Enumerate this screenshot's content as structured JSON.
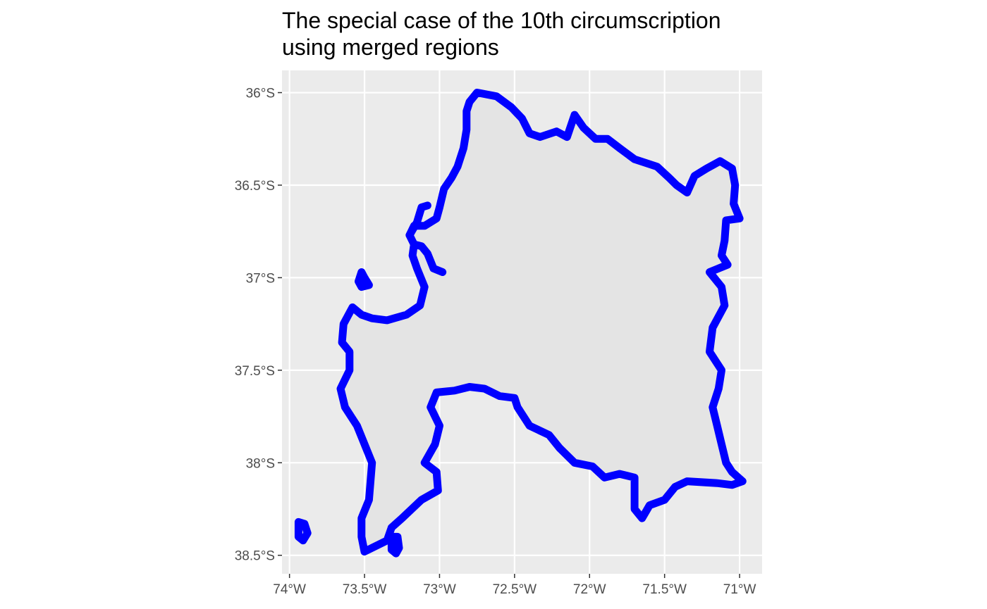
{
  "title": {
    "line1": "The special case of the 10th circumscription",
    "line2": "using merged regions"
  },
  "colors": {
    "panel_background": "#ebebeb",
    "grid": "#ffffff",
    "region_fill": "#e4e4e4",
    "border": "#0000ff",
    "tick_text": "#4d4d4d",
    "tick_mark": "#333333"
  },
  "chart_data": {
    "type": "map",
    "projection": "longitude/latitude",
    "xlim": [
      -74.05,
      -70.85
    ],
    "ylim": [
      -38.6,
      -35.88
    ],
    "x_ticks": [
      {
        "value": -74.0,
        "label": "74°W"
      },
      {
        "value": -73.5,
        "label": "73.5°W"
      },
      {
        "value": -73.0,
        "label": "73°W"
      },
      {
        "value": -72.5,
        "label": "72.5°W"
      },
      {
        "value": -72.0,
        "label": "72°W"
      },
      {
        "value": -71.5,
        "label": "71.5°W"
      },
      {
        "value": -71.0,
        "label": "71°W"
      }
    ],
    "y_ticks": [
      {
        "value": -36.0,
        "label": "36°S"
      },
      {
        "value": -36.5,
        "label": "36.5°S"
      },
      {
        "value": -37.0,
        "label": "37°S"
      },
      {
        "value": -37.5,
        "label": "37.5°S"
      },
      {
        "value": -38.0,
        "label": "38°S"
      },
      {
        "value": -38.5,
        "label": "38.5°S"
      }
    ],
    "regions": [
      {
        "id": "mainland",
        "closed": true,
        "coords": [
          [
            -72.75,
            -36.0
          ],
          [
            -72.62,
            -36.02
          ],
          [
            -72.52,
            -36.08
          ],
          [
            -72.45,
            -36.14
          ],
          [
            -72.4,
            -36.22
          ],
          [
            -72.33,
            -36.24
          ],
          [
            -72.22,
            -36.21
          ],
          [
            -72.15,
            -36.24
          ],
          [
            -72.1,
            -36.12
          ],
          [
            -72.04,
            -36.19
          ],
          [
            -71.96,
            -36.25
          ],
          [
            -71.88,
            -36.25
          ],
          [
            -71.8,
            -36.3
          ],
          [
            -71.7,
            -36.36
          ],
          [
            -71.55,
            -36.4
          ],
          [
            -71.47,
            -36.46
          ],
          [
            -71.42,
            -36.5
          ],
          [
            -71.35,
            -36.54
          ],
          [
            -71.3,
            -36.45
          ],
          [
            -71.22,
            -36.41
          ],
          [
            -71.13,
            -36.37
          ],
          [
            -71.05,
            -36.41
          ],
          [
            -71.03,
            -36.5
          ],
          [
            -71.04,
            -36.6
          ],
          [
            -71.0,
            -36.68
          ],
          [
            -71.09,
            -36.69
          ],
          [
            -71.1,
            -36.8
          ],
          [
            -71.12,
            -36.88
          ],
          [
            -71.08,
            -36.93
          ],
          [
            -71.2,
            -36.97
          ],
          [
            -71.12,
            -37.05
          ],
          [
            -71.1,
            -37.15
          ],
          [
            -71.18,
            -37.27
          ],
          [
            -71.2,
            -37.4
          ],
          [
            -71.12,
            -37.5
          ],
          [
            -71.14,
            -37.6
          ],
          [
            -71.18,
            -37.7
          ],
          [
            -71.15,
            -37.8
          ],
          [
            -71.12,
            -37.9
          ],
          [
            -71.09,
            -38.0
          ],
          [
            -71.05,
            -38.05
          ],
          [
            -70.98,
            -38.1
          ],
          [
            -71.05,
            -38.12
          ],
          [
            -71.15,
            -38.11
          ],
          [
            -71.35,
            -38.1
          ],
          [
            -71.43,
            -38.13
          ],
          [
            -71.5,
            -38.2
          ],
          [
            -71.6,
            -38.23
          ],
          [
            -71.65,
            -38.3
          ],
          [
            -71.7,
            -38.25
          ],
          [
            -71.7,
            -38.08
          ],
          [
            -71.8,
            -38.06
          ],
          [
            -71.9,
            -38.08
          ],
          [
            -71.98,
            -38.02
          ],
          [
            -72.1,
            -38.0
          ],
          [
            -72.2,
            -37.92
          ],
          [
            -72.27,
            -37.85
          ],
          [
            -72.4,
            -37.8
          ],
          [
            -72.48,
            -37.7
          ],
          [
            -72.5,
            -37.65
          ],
          [
            -72.6,
            -37.64
          ],
          [
            -72.7,
            -37.6
          ],
          [
            -72.8,
            -37.59
          ],
          [
            -72.9,
            -37.61
          ],
          [
            -73.02,
            -37.62
          ],
          [
            -73.06,
            -37.7
          ],
          [
            -73.0,
            -37.8
          ],
          [
            -73.03,
            -37.9
          ],
          [
            -73.1,
            -38.0
          ],
          [
            -73.02,
            -38.05
          ],
          [
            -73.01,
            -38.15
          ],
          [
            -73.12,
            -38.2
          ],
          [
            -73.25,
            -38.3
          ],
          [
            -73.32,
            -38.35
          ],
          [
            -73.35,
            -38.42
          ],
          [
            -73.45,
            -38.46
          ],
          [
            -73.5,
            -38.48
          ],
          [
            -73.52,
            -38.4
          ],
          [
            -73.52,
            -38.3
          ],
          [
            -73.47,
            -38.2
          ],
          [
            -73.45,
            -38.0
          ],
          [
            -73.55,
            -37.8
          ],
          [
            -73.63,
            -37.7
          ],
          [
            -73.66,
            -37.6
          ],
          [
            -73.6,
            -37.5
          ],
          [
            -73.6,
            -37.4
          ],
          [
            -73.65,
            -37.35
          ],
          [
            -73.64,
            -37.25
          ],
          [
            -73.58,
            -37.16
          ],
          [
            -73.52,
            -37.2
          ],
          [
            -73.45,
            -37.22
          ],
          [
            -73.35,
            -37.23
          ],
          [
            -73.22,
            -37.2
          ],
          [
            -73.13,
            -37.15
          ],
          [
            -73.1,
            -37.05
          ],
          [
            -73.15,
            -36.95
          ],
          [
            -73.18,
            -36.88
          ],
          [
            -73.17,
            -36.82
          ],
          [
            -73.2,
            -36.77
          ],
          [
            -73.17,
            -36.72
          ],
          [
            -73.1,
            -36.72
          ],
          [
            -73.02,
            -36.68
          ],
          [
            -73.0,
            -36.62
          ],
          [
            -72.97,
            -36.52
          ],
          [
            -72.92,
            -36.46
          ],
          [
            -72.88,
            -36.4
          ],
          [
            -72.84,
            -36.3
          ],
          [
            -72.82,
            -36.2
          ],
          [
            -72.82,
            -36.1
          ],
          [
            -72.8,
            -36.05
          ]
        ]
      },
      {
        "id": "arauco-peninsula-inlet",
        "closed": false,
        "coords": [
          [
            -73.17,
            -36.82
          ],
          [
            -73.12,
            -36.83
          ],
          [
            -73.08,
            -36.87
          ],
          [
            -73.06,
            -36.91
          ],
          [
            -73.04,
            -36.95
          ],
          [
            -72.98,
            -36.97
          ]
        ]
      },
      {
        "id": "tumbes-peninsula-spur",
        "closed": false,
        "coords": [
          [
            -73.2,
            -36.77
          ],
          [
            -73.15,
            -36.7
          ],
          [
            -73.12,
            -36.62
          ],
          [
            -73.08,
            -36.61
          ]
        ]
      },
      {
        "id": "isla-santa-maria",
        "closed": true,
        "coords": [
          [
            -73.52,
            -36.97
          ],
          [
            -73.5,
            -37.0
          ],
          [
            -73.47,
            -37.04
          ],
          [
            -73.52,
            -37.05
          ],
          [
            -73.54,
            -37.02
          ]
        ]
      },
      {
        "id": "isla-mocha",
        "closed": true,
        "coords": [
          [
            -73.94,
            -38.32
          ],
          [
            -73.9,
            -38.33
          ],
          [
            -73.88,
            -38.38
          ],
          [
            -73.91,
            -38.42
          ],
          [
            -73.94,
            -38.4
          ]
        ]
      },
      {
        "id": "southern-lobe",
        "closed": true,
        "coords": [
          [
            -73.32,
            -38.4
          ],
          [
            -73.28,
            -38.4
          ],
          [
            -73.27,
            -38.46
          ],
          [
            -73.29,
            -38.49
          ],
          [
            -73.32,
            -38.47
          ]
        ]
      }
    ]
  }
}
